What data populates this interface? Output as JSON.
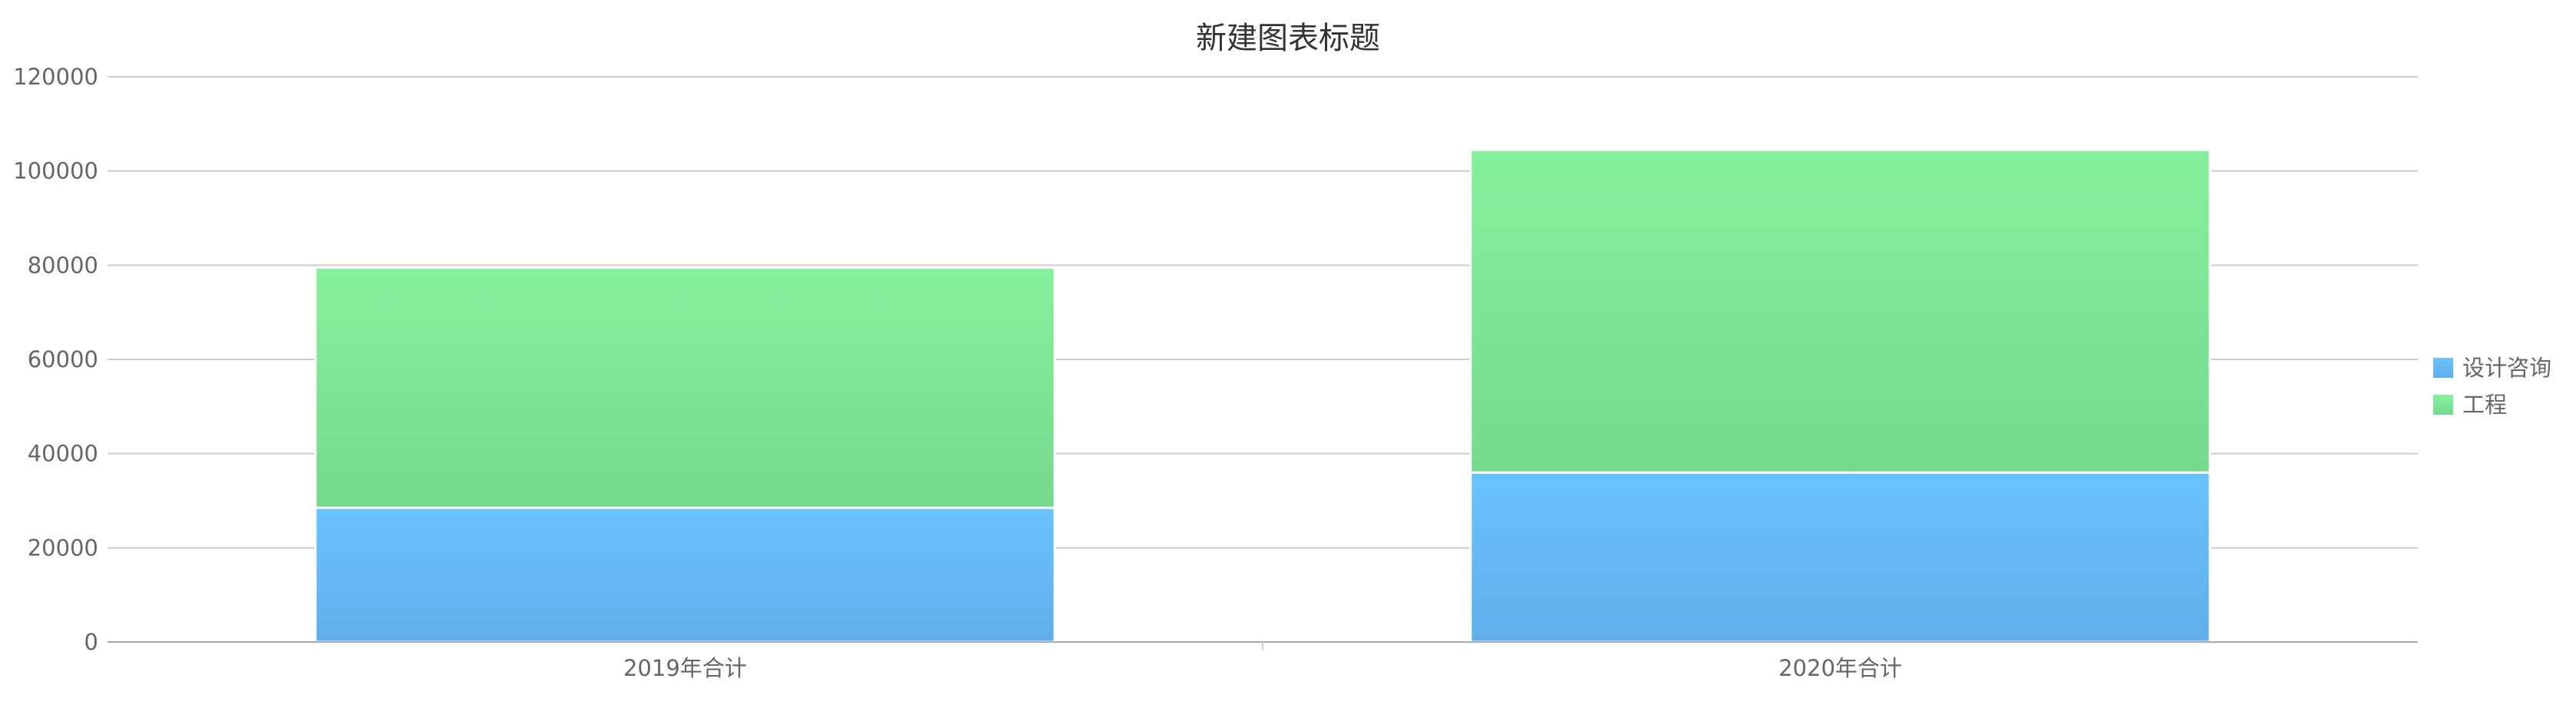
{
  "chart_data": {
    "type": "bar",
    "stacked": true,
    "title": "新建图表标题",
    "categories": [
      "2019年合计",
      "2020年合计"
    ],
    "series": [
      {
        "name": "设计咨询",
        "values": [
          28500,
          36000
        ],
        "color_top": "#6AC3FC",
        "color_bottom": "#61AEE9"
      },
      {
        "name": "工程",
        "values": [
          51000,
          68500
        ],
        "color_top": "#85F19E",
        "color_bottom": "#76D98E"
      }
    ],
    "ylim": [
      0,
      120000
    ],
    "yticks": [
      0,
      20000,
      40000,
      60000,
      80000,
      100000,
      120000
    ],
    "grid": true,
    "legend_position": "right",
    "xlabel": "",
    "ylabel": ""
  }
}
